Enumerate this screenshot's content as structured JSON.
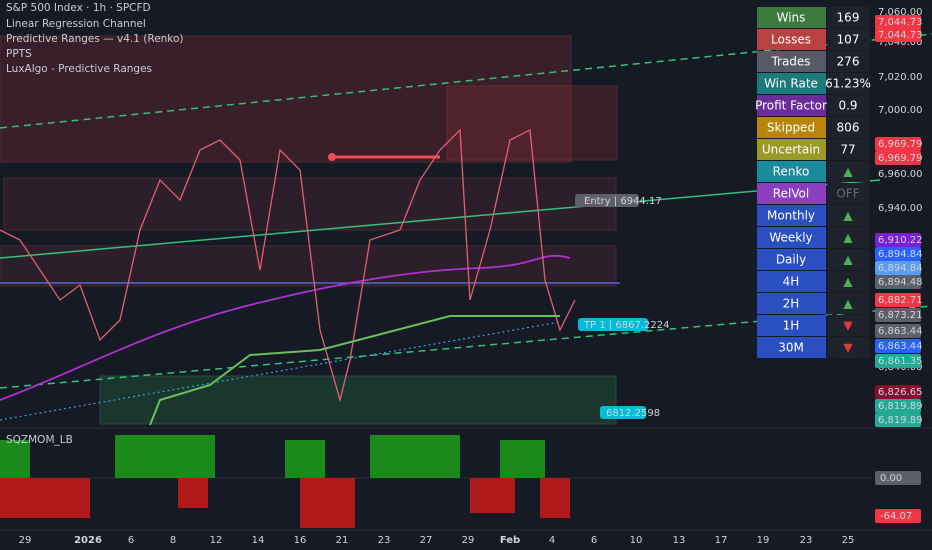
{
  "header": {
    "symbol": "S&P 500 Index · 1h · SPCFD",
    "indicators": [
      "Linear Regression Channel",
      "Predictive Ranges — v4.1 (Renko)",
      "PPTS",
      "LuxAlgo - Predictive Ranges"
    ]
  },
  "stats": {
    "rows": [
      [
        "Wins",
        "169"
      ],
      [
        "Losses",
        "107"
      ],
      [
        "Trades",
        "276"
      ],
      [
        "Win Rate",
        "61.23%"
      ],
      [
        "Profit Factor",
        "0.9"
      ],
      [
        "Skipped",
        "806"
      ],
      [
        "Uncertain",
        "77"
      ],
      [
        "Renko",
        "▲"
      ],
      [
        "RelVol",
        "OFF"
      ],
      [
        "Monthly",
        "▲"
      ],
      [
        "Weekly",
        "▲"
      ],
      [
        "Daily",
        "▲"
      ],
      [
        "4H",
        "▲"
      ],
      [
        "2H",
        "▲"
      ],
      [
        "1H",
        "▼"
      ],
      [
        "30M",
        "▼"
      ]
    ]
  },
  "price_axis": {
    "ticks": [
      "7,060.00",
      "7,040.00",
      "7,020.00",
      "7,000.00",
      "6,960.00",
      "6,940.00",
      "6,840.00"
    ],
    "badges": [
      "7,044.73",
      "7,044.73",
      "6,969.79",
      "6,969.79",
      "6,910.22",
      "6,894.84",
      "6,894.84",
      "6,894.48",
      "6,882.71",
      "6,873.21",
      "6,863.44",
      "6,863.44",
      "6,861.35",
      "6,826.65",
      "6,819.89",
      "6,819.89"
    ]
  },
  "chart_labels": {
    "entry": "Entry | 6944.17",
    "tp": "TP 1 | 6867.2224",
    "stop": "6812.2598"
  },
  "oscillator": {
    "title": "SQZMOM_LB",
    "labels": [
      "0.00",
      "-64.07"
    ]
  },
  "time_axis": {
    "labels": [
      "29",
      "2026",
      "6",
      "8",
      "12",
      "14",
      "16",
      "21",
      "23",
      "27",
      "29",
      "Feb",
      "4",
      "6",
      "10",
      "13",
      "17",
      "19",
      "23",
      "25"
    ]
  }
}
